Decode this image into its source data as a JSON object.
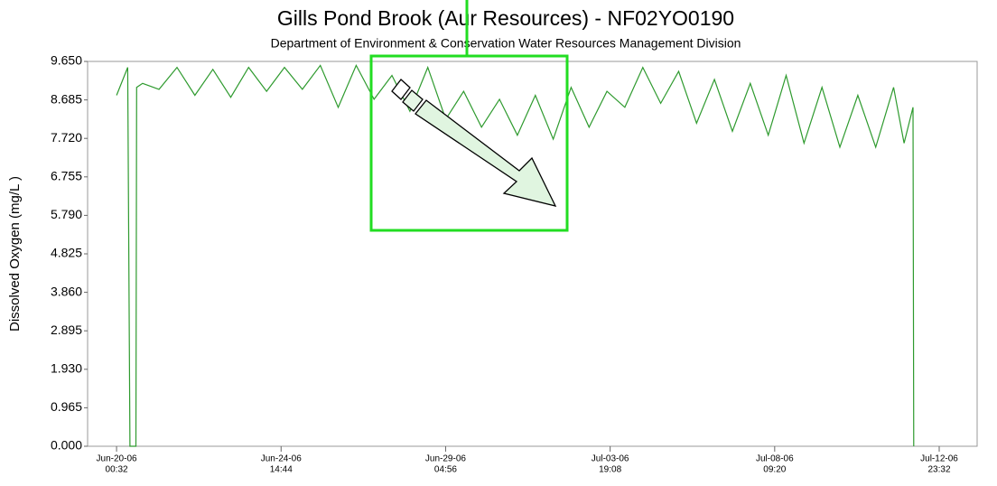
{
  "chart_data": {
    "type": "line",
    "title": "Gills Pond Brook (Aur Resources) - NF02YO0190",
    "subtitle": "Department of Environment & Conservation Water Resources Management Division",
    "y_label": "Dissolved Oxygen (mg/L )",
    "ylim": [
      0,
      9.65
    ],
    "yticks": [
      {
        "value": 0,
        "label": "0.000"
      },
      0.965,
      {
        "value": 1.93,
        "label": "1.930"
      },
      2.895,
      {
        "value": 3.86,
        "label": "3.860"
      },
      4.825,
      {
        "value": 5.79,
        "label": "5.790"
      },
      6.755,
      {
        "value": 7.72,
        "label": "7.720"
      },
      8.685,
      {
        "value": 9.65,
        "label": "9.650"
      }
    ],
    "xlim": [
      "2006-06-19T05:08",
      "2006-07-14T00:56"
    ],
    "xticks": [
      {
        "value": "2006-06-20T00:32",
        "label": [
          "Jun-20-06",
          "00:32"
        ]
      },
      {
        "value": "2006-06-24T14:44",
        "label": [
          "Jun-24-06",
          "14:44"
        ]
      },
      {
        "value": "2006-06-29T04:56",
        "label": [
          "Jun-29-06",
          "04:56"
        ]
      },
      {
        "value": "2006-07-03T19:08",
        "label": [
          "Jul-03-06",
          "19:08"
        ]
      },
      {
        "value": "2006-07-08T09:20",
        "label": [
          "Jul-08-06",
          "09:20"
        ]
      },
      {
        "value": "2006-07-12T23:32",
        "label": [
          "Jul-12-06",
          "23:32"
        ]
      }
    ],
    "color": "#2e9a2e",
    "x": [
      "2006-06-20T00:32",
      "2006-06-20T08:00",
      "2006-06-20T09:30",
      "2006-06-20T13:30",
      "2006-06-20T14:00",
      "2006-06-20T18:00",
      "2006-06-21T05:00",
      "2006-06-21T17:00",
      "2006-06-22T05:00",
      "2006-06-22T17:00",
      "2006-06-23T05:00",
      "2006-06-23T17:00",
      "2006-06-24T05:00",
      "2006-06-24T17:00",
      "2006-06-25T05:00",
      "2006-06-25T17:00",
      "2006-06-26T05:00",
      "2006-06-26T17:00",
      "2006-06-27T05:00",
      "2006-06-27T17:00",
      "2006-06-28T05:00",
      "2006-06-28T17:00",
      "2006-06-29T05:00",
      "2006-06-29T17:00",
      "2006-06-30T05:00",
      "2006-06-30T17:00",
      "2006-07-01T05:00",
      "2006-07-01T17:00",
      "2006-07-02T05:00",
      "2006-07-02T17:00",
      "2006-07-03T05:00",
      "2006-07-03T17:00",
      "2006-07-04T05:00",
      "2006-07-04T17:00",
      "2006-07-05T05:00",
      "2006-07-05T17:00",
      "2006-07-06T05:00",
      "2006-07-06T17:00",
      "2006-07-07T05:00",
      "2006-07-07T17:00",
      "2006-07-08T05:00",
      "2006-07-08T17:00",
      "2006-07-09T05:00",
      "2006-07-09T17:00",
      "2006-07-10T05:00",
      "2006-07-10T17:00",
      "2006-07-11T05:00",
      "2006-07-11T17:00",
      "2006-07-12T00:00",
      "2006-07-12T06:00",
      "2006-07-12T06:30"
    ],
    "values": [
      8.8,
      9.5,
      0,
      0,
      9.0,
      9.1,
      8.95,
      9.5,
      8.8,
      9.45,
      8.75,
      9.5,
      8.9,
      9.5,
      8.95,
      9.55,
      8.5,
      9.55,
      8.7,
      9.3,
      8.4,
      9.5,
      8.2,
      8.9,
      8.0,
      8.7,
      7.8,
      8.8,
      7.7,
      9.0,
      8.0,
      8.9,
      8.5,
      9.5,
      8.6,
      9.4,
      8.1,
      9.2,
      7.9,
      9.1,
      7.8,
      9.3,
      7.6,
      9.0,
      7.5,
      8.8,
      7.5,
      9.0,
      7.6,
      8.5,
      0
    ]
  }
}
